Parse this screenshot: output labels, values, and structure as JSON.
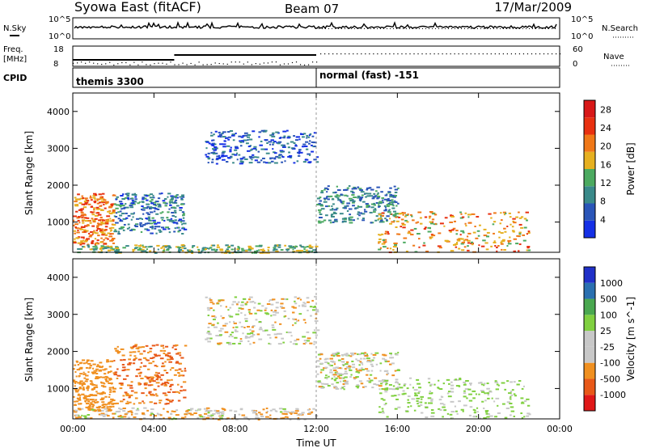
{
  "header": {
    "station": "Syowa East (fitACF)",
    "beam": "Beam 07",
    "date": "17/Mar/2009"
  },
  "ancillary": {
    "nsky_label": "N.Sky",
    "nsky_ticks": [
      "10^5",
      "10^0"
    ],
    "nsearch_label": "N.Search",
    "nsearch_ticks": [
      "10^5",
      "10^0"
    ],
    "freq_label_1": "Freq.",
    "freq_label_2": "[MHz]",
    "freq_ticks": [
      "18",
      "8"
    ],
    "nave_label": "Nave",
    "nave_ticks": [
      "60",
      "0"
    ],
    "cpid_label": "CPID",
    "cpid_modes": [
      {
        "name": "themis 3300",
        "start_hour": 0,
        "end_hour": 12
      },
      {
        "name": "normal (fast) -151",
        "start_hour": 12,
        "end_hour": 24
      }
    ]
  },
  "axes": {
    "xlabel": "Time UT",
    "xticks": [
      "00:00",
      "04:00",
      "08:00",
      "12:00",
      "16:00",
      "20:00",
      "00:00"
    ],
    "ylabel": "Slant Range [km]",
    "yticks": [
      "1000",
      "2000",
      "3000",
      "4000"
    ]
  },
  "colors": {
    "power": [
      "#1530e6",
      "#2a55b8",
      "#3a8a8a",
      "#4caa60",
      "#e6b020",
      "#f07818",
      "#e83010",
      "#d81818"
    ],
    "velocity": [
      "#e01818",
      "#e85818",
      "#f09020",
      "#c8c8c8",
      "#c8c8c8",
      "#80d040",
      "#4aa850",
      "#2a70b0",
      "#2030c8"
    ]
  },
  "chart_data": [
    {
      "type": "heatmap",
      "title": "",
      "x": {
        "label": "Time UT",
        "range": [
          "00:00",
          "24:00"
        ]
      },
      "y": {
        "label": "Slant Range [km]",
        "range": [
          180,
          4500
        ]
      },
      "colorbar": {
        "label": "Power [dB]",
        "ticks": [
          4,
          8,
          12,
          16,
          20,
          24,
          28
        ],
        "range": [
          0,
          30
        ]
      },
      "echo_regions": [
        {
          "t0": 0.0,
          "t1": 2.0,
          "r0": 400,
          "r1": 1800,
          "level": 20
        },
        {
          "t0": 0.0,
          "t1": 12.0,
          "r0": 180,
          "r1": 400,
          "level": 12
        },
        {
          "t0": 2.0,
          "t1": 5.5,
          "r0": 700,
          "r1": 1800,
          "level": 6
        },
        {
          "t0": 6.5,
          "t1": 12.0,
          "r0": 2600,
          "r1": 3500,
          "level": 4
        },
        {
          "t0": 12.0,
          "t1": 16.0,
          "r0": 1000,
          "r1": 2000,
          "level": 8
        },
        {
          "t0": 15.0,
          "t1": 22.5,
          "r0": 200,
          "r1": 1300,
          "level": 18
        }
      ]
    },
    {
      "type": "heatmap",
      "title": "",
      "x": {
        "label": "Time UT",
        "range": [
          "00:00",
          "24:00"
        ]
      },
      "y": {
        "label": "Slant Range [km]",
        "range": [
          180,
          4500
        ]
      },
      "colorbar": {
        "label": "Velocity [m s^-1]",
        "ticks": [
          -1000,
          -500,
          -100,
          -25,
          25,
          100,
          500,
          1000
        ]
      },
      "echo_regions": [
        {
          "t0": 0.0,
          "t1": 2.0,
          "r0": 400,
          "r1": 1800,
          "velocity": -300
        },
        {
          "t0": 2.0,
          "t1": 5.5,
          "r0": 600,
          "r1": 2200,
          "velocity": -500
        },
        {
          "t0": 6.5,
          "t1": 12.0,
          "r0": 2200,
          "r1": 3500,
          "velocity": 0
        },
        {
          "t0": 0.0,
          "t1": 12.0,
          "r0": 180,
          "r1": 500,
          "velocity": -60
        },
        {
          "t0": 12.0,
          "t1": 16.0,
          "r0": 1000,
          "r1": 2000,
          "velocity": 0
        },
        {
          "t0": 15.0,
          "t1": 22.5,
          "r0": 200,
          "r1": 1300,
          "velocity": 150
        }
      ]
    }
  ]
}
